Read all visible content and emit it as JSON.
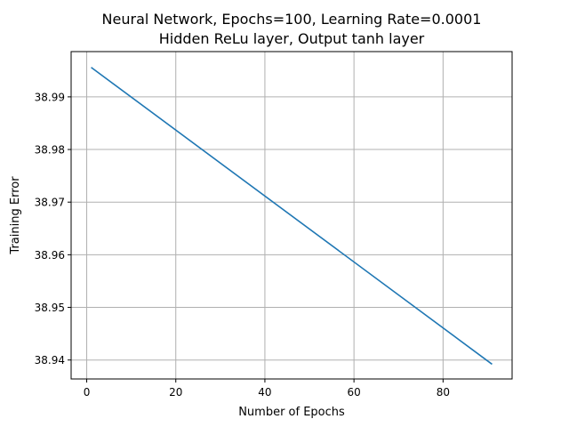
{
  "chart_data": {
    "type": "line",
    "title": "Neural Network, Epochs=100, Learning Rate=0.0001",
    "subtitle": "Hidden ReLu layer, Output tanh layer",
    "xlabel": "Number of Epochs",
    "ylabel": "Training Error",
    "xlim": [
      -3.5,
      95.5
    ],
    "ylim": [
      38.9364,
      38.9986
    ],
    "xticks": [
      0,
      20,
      40,
      60,
      80
    ],
    "xtick_labels": [
      "0",
      "20",
      "40",
      "60",
      "80"
    ],
    "yticks": [
      38.94,
      38.95,
      38.96,
      38.97,
      38.98,
      38.99
    ],
    "ytick_labels": [
      "38.94",
      "38.95",
      "38.96",
      "38.97",
      "38.98",
      "38.99"
    ],
    "grid": true,
    "series": [
      {
        "color": "#1f77b4",
        "x": [
          1,
          91
        ],
        "y": [
          38.9956,
          38.9392
        ]
      }
    ]
  }
}
